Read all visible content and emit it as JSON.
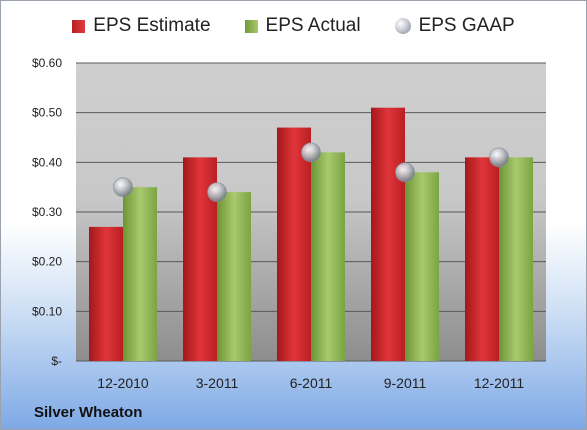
{
  "chart_data": {
    "type": "bar",
    "categories": [
      "12-2010",
      "3-2011",
      "6-2011",
      "9-2011",
      "12-2011"
    ],
    "series": [
      {
        "name": "EPS Estimate",
        "values": [
          0.27,
          0.41,
          0.47,
          0.51,
          0.41
        ],
        "color": "#d0282c"
      },
      {
        "name": "EPS Actual",
        "values": [
          0.35,
          0.34,
          0.42,
          0.38,
          0.41
        ],
        "color": "#8db354"
      },
      {
        "name": "EPS GAAP",
        "values": [
          0.35,
          0.34,
          0.42,
          0.38,
          0.41
        ],
        "color": "#b8bcc4",
        "marker": "sphere"
      }
    ],
    "ylim": [
      0,
      0.6
    ],
    "yticks": [
      0,
      0.1,
      0.2,
      0.3,
      0.4,
      0.5,
      0.6
    ],
    "ytick_labels": [
      "$-",
      "$0.10",
      "$0.20",
      "$0.30",
      "$0.40",
      "$0.50",
      "$0.60"
    ],
    "grid": true,
    "legend": "top-center"
  },
  "company": "Silver Wheaton"
}
